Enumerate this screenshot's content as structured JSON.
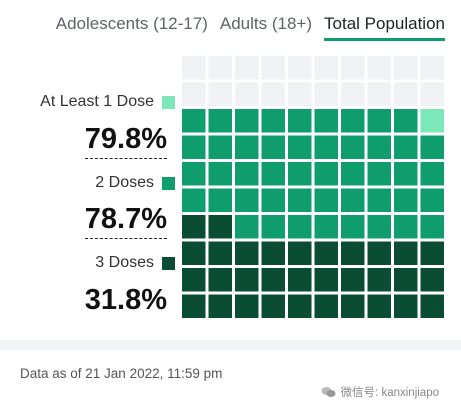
{
  "tabs": [
    {
      "label": "Adolescents (12-17)",
      "active": false
    },
    {
      "label": "Adults (18+)",
      "active": false
    },
    {
      "label": "Total Population",
      "active": true
    }
  ],
  "chart_data": {
    "type": "waffle",
    "grid": {
      "rows": 10,
      "cols": 10
    },
    "series": [
      {
        "name": "At Least 1 Dose",
        "value": 79.8,
        "label": "79.8%",
        "color": "#7ce8b8"
      },
      {
        "name": "2 Doses",
        "value": 78.7,
        "label": "78.7%",
        "color": "#0f9d6e"
      },
      {
        "name": "3 Doses",
        "value": 31.8,
        "label": "31.8%",
        "color": "#0b4d33"
      }
    ],
    "empty_color": "#f1f2f4"
  },
  "footer": {
    "note": "Data as of 21 Jan 2022, 11:59 pm",
    "watermark": "微信号: kanxinjiapo"
  }
}
